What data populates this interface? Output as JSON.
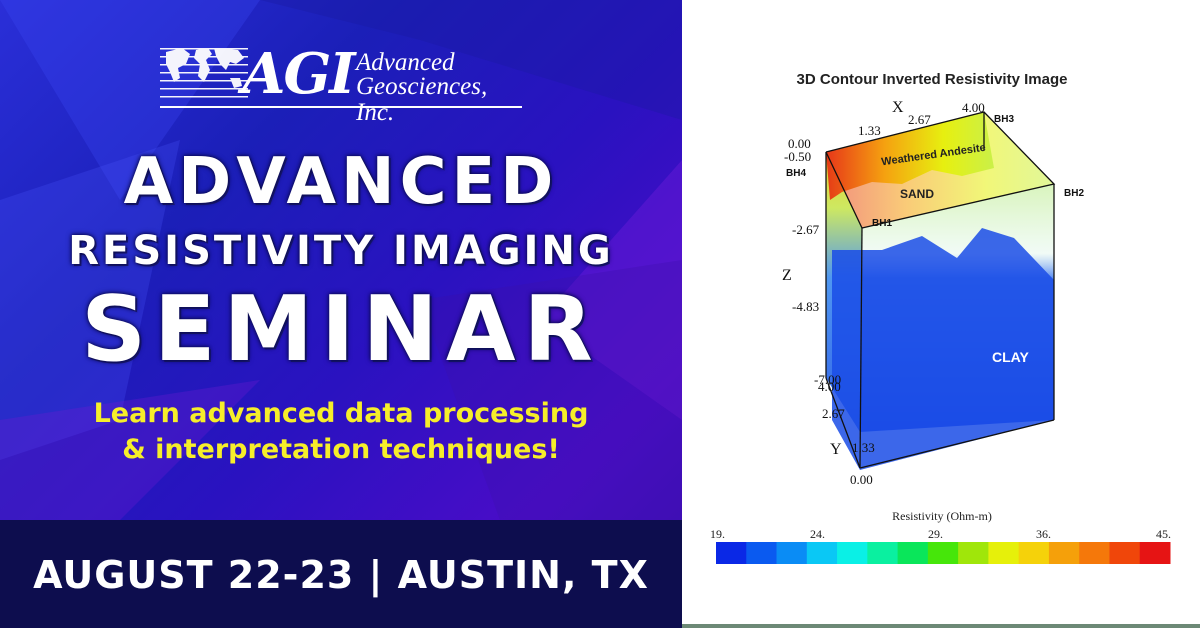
{
  "logo": {
    "mark": "AGI",
    "company_line1": "Advanced",
    "company_line2": "Geosciences, Inc.",
    "icon": "world-map-icon"
  },
  "headline": {
    "line1": "ADVANCED",
    "line2": "RESISTIVITY IMAGING",
    "line3": "SEMINAR"
  },
  "tagline": {
    "line1": "Learn advanced data processing",
    "line2": "& interpretation techniques!"
  },
  "event": {
    "date_location": "AUGUST 22-23 | AUSTIN, TX"
  },
  "figure": {
    "title": "3D Contour  Inverted Resistivity Image",
    "axes": {
      "x_label": "X",
      "x_ticks": [
        "1.33",
        "2.67",
        "4.00"
      ],
      "z_label": "Z",
      "z_ticks": [
        "0.00",
        "-0.50",
        "-2.67",
        "-4.83",
        "-7.00"
      ],
      "y_label": "Y",
      "y_ticks": [
        "4.00",
        "2.67",
        "1.33",
        "0.00"
      ]
    },
    "boreholes": [
      "BH1",
      "BH2",
      "BH3",
      "BH4"
    ],
    "layers": [
      "Weathered Andesite",
      "SAND",
      "CLAY"
    ],
    "colorbar": {
      "title": "Resistivity  (Ohm-m)",
      "ticks": [
        "19.",
        "24.",
        "29.",
        "36.",
        "45."
      ],
      "colors": [
        "#0a28e6",
        "#0a5af0",
        "#0a8cf5",
        "#0ac8f5",
        "#0af0e6",
        "#0af0a0",
        "#0ae65a",
        "#46e60a",
        "#a0e60a",
        "#e6f00a",
        "#f5d20a",
        "#f5a00a",
        "#f5780a",
        "#f0460a",
        "#e61414"
      ]
    }
  }
}
